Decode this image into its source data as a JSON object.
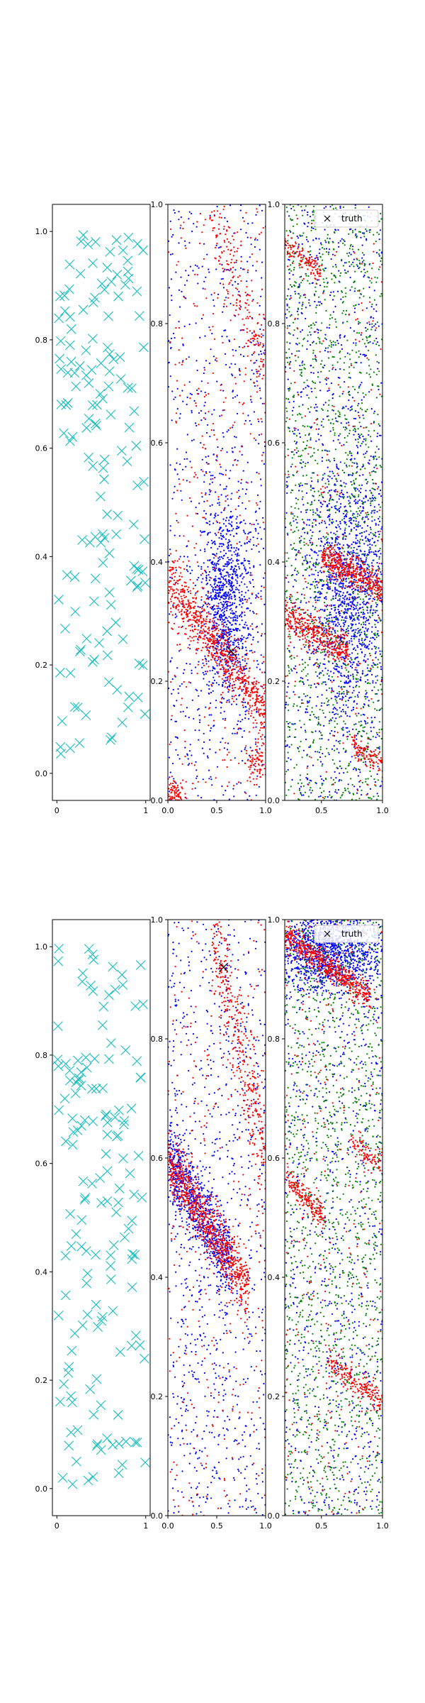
{
  "chart_data": [
    {
      "type": "scatter",
      "panel": "top-left",
      "xlim": [
        -0.05,
        1.05
      ],
      "ylim": [
        -0.05,
        1.05
      ],
      "xticks": [
        0,
        1
      ],
      "xtick_labels": [
        "0",
        "1"
      ],
      "yticks": [
        0.0,
        0.2,
        0.4,
        0.6,
        0.8,
        1.0
      ],
      "ytick_labels": [
        "0.0",
        "0.2",
        "0.4",
        "0.6",
        "0.8",
        "1.0"
      ],
      "marker": "x",
      "color": "#17bfbf",
      "point_count": 150,
      "distribution": "uniform over [0,1] x [0,1]",
      "grid": false
    },
    {
      "type": "scatter",
      "panel": "top-middle",
      "xlim": [
        0.0,
        1.0
      ],
      "ylim": [
        0.0,
        1.0
      ],
      "xticks": [
        0.0,
        0.5,
        1.0
      ],
      "xtick_labels": [
        "0.0",
        "0.5",
        "1.0"
      ],
      "yticks": [
        0.0,
        0.2,
        0.4,
        0.6,
        0.8,
        1.0
      ],
      "ytick_labels": [
        "0.0",
        "0.2",
        "0.4",
        "0.6",
        "0.8",
        "1.0"
      ],
      "series": [
        {
          "color": "#0000ff",
          "marker": ".",
          "point_count": 1700,
          "description": "diffuse cloud concentrated around x≈0.6, y≈0.25–0.45"
        },
        {
          "color": "#ff0000",
          "marker": ".",
          "point_count": 1500,
          "description": "band from (0,0.37) to (1,0.15), plus band near top-right and corner clusters"
        }
      ],
      "truth": {
        "x": 0.65,
        "y": 0.25,
        "marker": "x",
        "color": "#000000"
      },
      "grid": false
    },
    {
      "type": "scatter",
      "panel": "top-right",
      "xlim": [
        0.2,
        1.0
      ],
      "ylim": [
        0.0,
        1.0
      ],
      "xticks": [
        0.5,
        1.0
      ],
      "xtick_labels": [
        "0.5",
        "1.0"
      ],
      "yticks": [
        0.0,
        0.2,
        0.4,
        0.6,
        0.8,
        1.0
      ],
      "ytick_labels": [
        "0.0",
        "0.2",
        "0.4",
        "0.6",
        "0.8",
        "1.0"
      ],
      "series": [
        {
          "color": "#0000ff",
          "marker": ".",
          "point_count": 2200,
          "description": "broad cloud, densest near x≈0.7, y≈0.35"
        },
        {
          "color": "#008000",
          "marker": ".",
          "point_count": 1400,
          "description": "broad background cloud"
        },
        {
          "color": "#ff0000",
          "marker": ".",
          "point_count": 1300,
          "description": "diagonal streaks: (0.2,0.31)-(0.7,0.25), (0.5,0.41)-(1.0,0.36), (0.2,0.93)-(0.5,0.89), (0.75,0.09)-(1.0,0.06)"
        }
      ],
      "legend": {
        "entries": [
          "truth"
        ],
        "placement": "top-right",
        "marker": "x"
      },
      "grid": false
    },
    {
      "type": "scatter",
      "panel": "bottom-left",
      "xlim": [
        -0.05,
        1.05
      ],
      "ylim": [
        -0.05,
        1.05
      ],
      "xticks": [
        0,
        1
      ],
      "xtick_labels": [
        "0",
        "1"
      ],
      "yticks": [
        0.0,
        0.2,
        0.4,
        0.6,
        0.8,
        1.0
      ],
      "ytick_labels": [
        "0.0",
        "0.2",
        "0.4",
        "0.6",
        "0.8",
        "1.0"
      ],
      "marker": "x",
      "color": "#17bfbf",
      "point_count": 150,
      "distribution": "uniform over [0,1] x [0,1]",
      "grid": false
    },
    {
      "type": "scatter",
      "panel": "bottom-middle",
      "xlim": [
        0.0,
        1.0
      ],
      "ylim": [
        0.0,
        1.0
      ],
      "xticks": [
        0.0,
        0.5,
        1.0
      ],
      "xtick_labels": [
        "0.0",
        "0.5",
        "1.0"
      ],
      "yticks": [
        0.0,
        0.2,
        0.4,
        0.6,
        0.8,
        1.0
      ],
      "ytick_labels": [
        "0.0",
        "0.2",
        "0.4",
        "0.6",
        "0.8",
        "1.0"
      ],
      "series": [
        {
          "color": "#0000ff",
          "marker": ".",
          "point_count": 1700,
          "description": "cloud along band from (0,0.6) to (0.65,0.42), plus diffuse background"
        },
        {
          "color": "#ff0000",
          "marker": ".",
          "point_count": 1500,
          "description": "band from (0,0.6) to (0.8,0.38), band from (0.45,1.0) to (1.0,0.6), scattered points"
        }
      ],
      "truth": {
        "x": 0.57,
        "y": 0.92,
        "marker": "x",
        "color": "#000000"
      },
      "grid": false
    },
    {
      "type": "scatter",
      "panel": "bottom-right",
      "xlim": [
        0.2,
        1.0
      ],
      "ylim": [
        0.0,
        1.0
      ],
      "xticks": [
        0.5,
        1.0
      ],
      "xtick_labels": [
        "0.5",
        "1.0"
      ],
      "yticks": [
        0.0,
        0.2,
        0.4,
        0.6,
        0.8,
        1.0
      ],
      "ytick_labels": [
        "0.0",
        "0.2",
        "0.4",
        "0.6",
        "0.8",
        "1.0"
      ],
      "series": [
        {
          "color": "#0000ff",
          "marker": ".",
          "point_count": 2200,
          "description": "cloud densest near top (y≈0.95) and sparse elsewhere"
        },
        {
          "color": "#008000",
          "marker": ".",
          "point_count": 1400,
          "description": "broad background cloud"
        },
        {
          "color": "#ff0000",
          "marker": ".",
          "point_count": 1300,
          "description": "diagonal streaks: (0.2,0.97)-(0.9,0.87), (0.2,0.57)-(0.5,0.5), (0.55,0.26)-(1.0,0.19), (0.75,0.62)-(1.0,0.59)"
        }
      ],
      "legend": {
        "entries": [
          "truth"
        ],
        "placement": "top-right",
        "marker": "x"
      },
      "grid": false
    }
  ]
}
